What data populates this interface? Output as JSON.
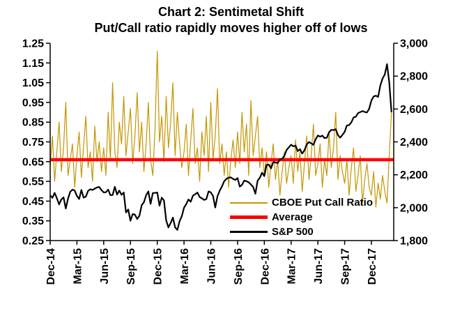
{
  "title": {
    "line1": "Chart 2: Sentimetal Shift",
    "line2": "Put/Call ratio rapidly moves higher off of lows"
  },
  "chart_data": {
    "type": "line",
    "title": "Chart 2: Sentimetal Shift Put/Call ratio rapidly moves higher off of lows",
    "x_unit": "time, 4 samples per month from Dec-2014 to Feb-2018",
    "x_range_months": [
      0,
      38.5
    ],
    "x_tick_positions_months": [
      0,
      3,
      6,
      9,
      12,
      15,
      18,
      21,
      24,
      27,
      30,
      33,
      36
    ],
    "x_tick_labels": [
      "Dec-14",
      "Mar-15",
      "Jun-15",
      "Sep-15",
      "Dec-15",
      "Mar-16",
      "Jun-16",
      "Sep-16",
      "Dec-16",
      "Mar-17",
      "Jun-17",
      "Sep-17",
      "Dec-17"
    ],
    "left_axis": {
      "min": 0.25,
      "max": 1.25,
      "ticks": [
        0.25,
        0.35,
        0.45,
        0.55,
        0.65,
        0.75,
        0.85,
        0.95,
        1.05,
        1.15,
        1.25
      ]
    },
    "right_axis": {
      "min": 1800,
      "max": 3000,
      "ticks": [
        1800,
        2000,
        2200,
        2400,
        2600,
        2800,
        3000
      ],
      "tick_labels": [
        "1,800",
        "2,000",
        "2,200",
        "2,400",
        "2,600",
        "2,800",
        "3,000"
      ]
    },
    "grid": false,
    "legend_position": "inside-bottom-right",
    "series": [
      {
        "name": "CBOE Put Call Ratio",
        "axis": "left",
        "color": "#C49500",
        "values": [
          0.62,
          0.78,
          0.55,
          0.7,
          0.85,
          0.6,
          0.72,
          0.95,
          0.58,
          0.66,
          0.74,
          0.52,
          0.68,
          0.8,
          0.57,
          0.73,
          0.88,
          0.62,
          0.7,
          0.55,
          0.83,
          0.65,
          0.75,
          0.6,
          0.72,
          0.58,
          0.9,
          0.66,
          1.05,
          0.7,
          0.62,
          0.85,
          0.74,
          0.98,
          0.68,
          0.8,
          0.92,
          0.64,
          0.78,
          1.0,
          0.7,
          0.85,
          0.6,
          0.74,
          0.95,
          0.66,
          0.58,
          0.82,
          1.21,
          0.75,
          0.88,
          0.65,
          0.98,
          0.72,
          0.85,
          1.05,
          0.68,
          0.9,
          0.74,
          0.62,
          0.7,
          0.84,
          0.58,
          0.76,
          0.92,
          0.64,
          0.72,
          0.55,
          0.8,
          0.68,
          0.88,
          0.6,
          0.95,
          0.66,
          0.78,
          1.02,
          0.64,
          0.74,
          0.58,
          0.7,
          0.52,
          0.66,
          0.76,
          0.62,
          0.8,
          0.64,
          0.9,
          0.7,
          0.84,
          0.58,
          0.96,
          0.68,
          0.78,
          0.88,
          0.62,
          0.72,
          0.58,
          0.7,
          0.52,
          0.64,
          0.74,
          0.56,
          0.66,
          0.48,
          0.6,
          0.7,
          0.54,
          0.62,
          0.68,
          0.54,
          0.76,
          0.6,
          0.7,
          0.5,
          0.64,
          0.78,
          0.56,
          0.68,
          0.84,
          0.58,
          0.64,
          0.74,
          0.52,
          0.66,
          0.58,
          0.8,
          0.62,
          0.72,
          0.9,
          0.56,
          0.68,
          0.6,
          0.54,
          0.66,
          0.48,
          0.62,
          0.72,
          0.5,
          0.58,
          0.68,
          0.44,
          0.56,
          0.64,
          0.52,
          0.48,
          0.6,
          0.42,
          0.54,
          0.46,
          0.58,
          0.5,
          0.44,
          0.68,
          0.9
        ]
      },
      {
        "name": "Average",
        "axis": "left",
        "color": "#FF0000",
        "value": 0.66
      },
      {
        "name": "S&P 500",
        "axis": "right",
        "color": "#000000",
        "values": [
          2075,
          2060,
          2090,
          2058,
          2020,
          2050,
          2063,
          1995,
          2055,
          2097,
          2110,
          2104,
          2071,
          2053,
          2108,
          2061,
          2067,
          2102,
          2112,
          2108,
          2116,
          2123,
          2126,
          2107,
          2093,
          2094,
          2110,
          2076,
          2077,
          2127,
          2080,
          2104,
          2078,
          2092,
          1971,
          1989,
          1921,
          1961,
          1958,
          1931,
          1951,
          2015,
          2033,
          2075,
          2099,
          2023,
          2089,
          2090,
          2092,
          2012,
          2061,
          2044,
          1922,
          1880,
          1907,
          1940,
          1880,
          1865,
          1918,
          1948,
          2000,
          2022,
          2050,
          2036,
          2073,
          2082,
          2092,
          2065,
          2057,
          2047,
          2052,
          2099,
          2093,
          2071,
          2001,
          2070,
          2103,
          2129,
          2161,
          2175,
          2183,
          2184,
          2175,
          2169,
          2180,
          2128,
          2139,
          2165,
          2161,
          2154,
          2141,
          2126,
          2085,
          2164,
          2182,
          2213,
          2192,
          2260,
          2263,
          2239,
          2277,
          2275,
          2271,
          2294,
          2297,
          2316,
          2351,
          2367,
          2383,
          2373,
          2378,
          2344,
          2356,
          2329,
          2349,
          2384,
          2399,
          2391,
          2382,
          2416,
          2439,
          2432,
          2438,
          2423,
          2425,
          2459,
          2473,
          2472,
          2477,
          2441,
          2426,
          2443,
          2461,
          2500,
          2502,
          2519,
          2549,
          2553,
          2575,
          2581,
          2588,
          2582,
          2579,
          2602,
          2652,
          2676,
          2681,
          2673,
          2743,
          2786,
          2810,
          2873,
          2762,
          2581
        ]
      }
    ]
  }
}
